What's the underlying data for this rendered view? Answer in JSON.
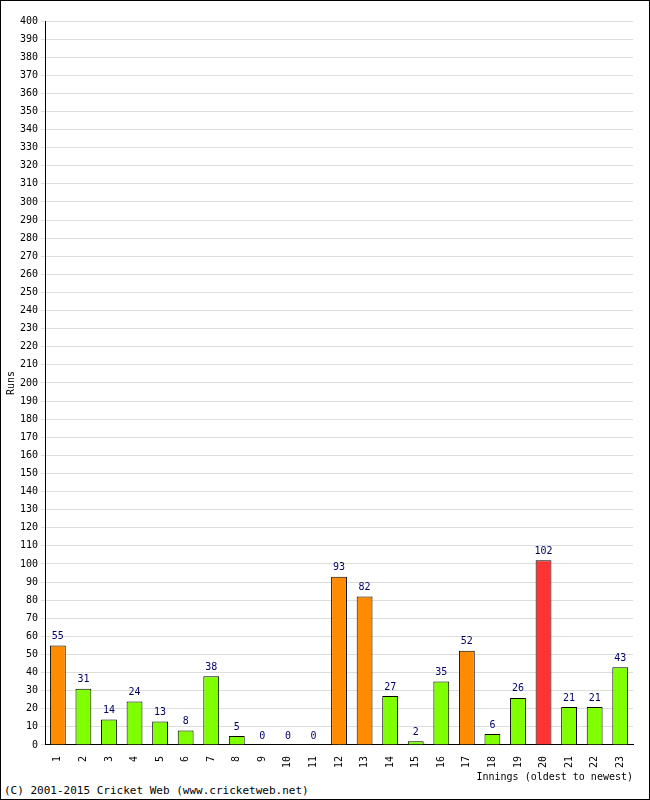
{
  "chart_data": {
    "type": "bar",
    "categories": [
      "1",
      "2",
      "3",
      "4",
      "5",
      "6",
      "7",
      "8",
      "9",
      "10",
      "11",
      "12",
      "13",
      "14",
      "15",
      "16",
      "17",
      "18",
      "19",
      "20",
      "21",
      "22",
      "23"
    ],
    "values": [
      55,
      31,
      14,
      24,
      13,
      8,
      38,
      5,
      0,
      0,
      0,
      93,
      82,
      27,
      2,
      35,
      52,
      6,
      26,
      102,
      21,
      21,
      43
    ],
    "colors": [
      "#ff8c00",
      "#80ff00",
      "#80ff00",
      "#80ff00",
      "#80ff00",
      "#80ff00",
      "#80ff00",
      "#80ff00",
      "#80ff00",
      "#80ff00",
      "#80ff00",
      "#ff8c00",
      "#ff8c00",
      "#80ff00",
      "#80ff00",
      "#80ff00",
      "#ff8c00",
      "#80ff00",
      "#80ff00",
      "#ff3333",
      "#80ff00",
      "#80ff00",
      "#80ff00"
    ],
    "x_label": "Innings (oldest to newest)",
    "y_label": "Runs",
    "annotations": [
      "(C) 2001-2015 Cricket Web (www.cricketweb.net)"
    ],
    "ylim": [
      0,
      400
    ],
    "yticks": [
      0,
      10,
      20,
      30,
      40,
      50,
      60,
      70,
      80,
      90,
      100,
      110,
      120,
      130,
      140,
      150,
      160,
      170,
      180,
      190,
      200,
      210,
      220,
      230,
      240,
      250,
      260,
      270,
      280,
      290,
      300,
      310,
      320,
      330,
      340,
      350,
      360,
      370,
      380,
      390,
      400
    ],
    "grid": true,
    "data_labels": true
  }
}
